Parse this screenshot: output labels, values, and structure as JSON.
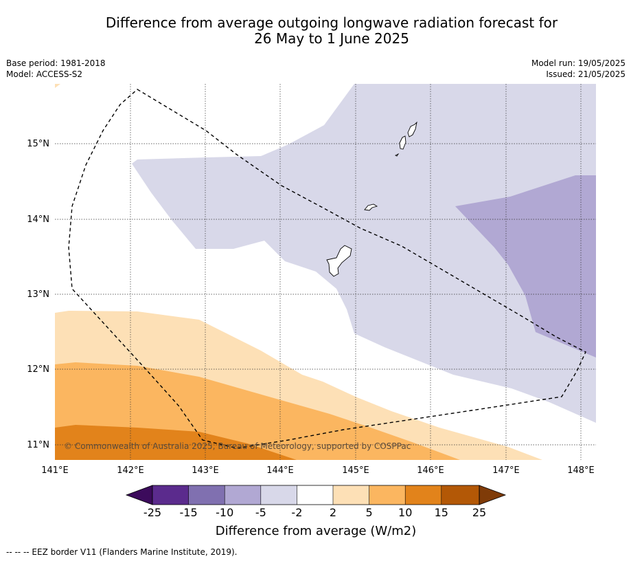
{
  "title_line1": "Difference from average outgoing longwave radiation forecast for",
  "title_line2": "26 May to 1 June 2025",
  "meta_left": [
    "Base period: 1981-2018",
    "Model: ACCESS-S2"
  ],
  "meta_right": [
    "Model run: 19/05/2025",
    "Issued: 21/05/2025"
  ],
  "map": {
    "lon_ticks": [
      "141°E",
      "142°E",
      "143°E",
      "144°E",
      "145°E",
      "146°E",
      "147°E",
      "148°E"
    ],
    "lat_ticks": [
      "15°N",
      "14°N",
      "13°N",
      "12°N",
      "11°N"
    ],
    "lon_range": [
      141,
      148.2
    ],
    "lat_range": [
      10.8,
      15.8
    ],
    "copyright": "© Commonwealth of Australia 2025, Bureau of Meteorology, supported by COSPPac",
    "region_colors": {
      "neg_5_to_2": "#d8d8e9",
      "neg_10_to_5": "#b1a8d3",
      "pos_2_to_5": "#fde0b6",
      "pos_5_to_10": "#fbb660",
      "pos_10_to_15": "#e2831b"
    }
  },
  "colorbar": {
    "tick_labels": [
      "-25",
      "-15",
      "-10",
      "-5",
      "-2",
      "2",
      "5",
      "10",
      "15",
      "25"
    ],
    "colors": [
      "#3c0b5c",
      "#5b2b8d",
      "#8070b0",
      "#b1a8d3",
      "#d8d8e9",
      "#ffffff",
      "#fde0b6",
      "#fbb660",
      "#e2831b",
      "#b35806",
      "#7f3b08"
    ],
    "label": "Difference from average (W/m2)"
  },
  "footer": "--  --  -- EEZ border V11 (Flanders Marine Institute, 2019)."
}
